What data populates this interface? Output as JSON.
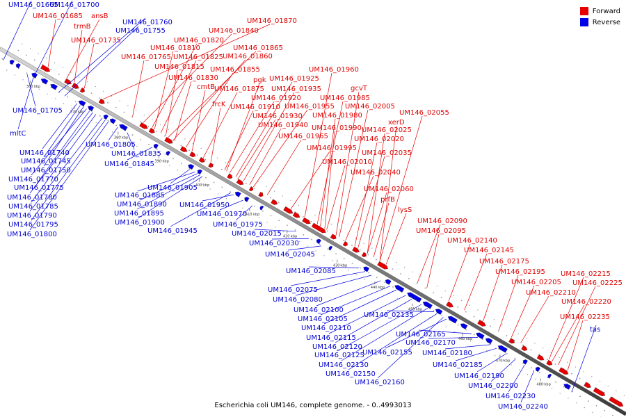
{
  "legend": {
    "forward_label": "Forward",
    "reverse_label": "Reverse",
    "forward_color": "#e60000",
    "reverse_color": "#0000e6"
  },
  "caption": "Escherichia coli UM146, complete genome. - 0..4993013",
  "scale": {
    "unit": "kbp",
    "ticks": [
      "360 kbp",
      "370 kbp",
      "380 kbp",
      "390 kbp",
      "400 kbp",
      "410 kbp",
      "420 kbp",
      "430 kbp",
      "440 kbp",
      "450 kbp",
      "460 kbp",
      "470 kbp",
      "480 kbp"
    ]
  },
  "forward_genes": [
    "UM146_01685",
    "ansB",
    "trmB",
    "UM146_01735",
    "UM146_01870",
    "UM146_01840",
    "UM146_01820",
    "UM146_01865",
    "UM146_01810",
    "UM146_01860",
    "UM146_01765",
    "UM146_01825",
    "UM146_01815",
    "UM146_01855",
    "UM146_01830",
    "cmtB",
    "frcK",
    "UM146_01875",
    "pgk",
    "UM146_01925",
    "UM146_01935",
    "UM146_01920",
    "UM146_01910",
    "UM146_01955",
    "UM146_01930",
    "UM146_01940",
    "UM146_01960",
    "gcvT",
    "UM146_01985",
    "UM146_02005",
    "UM146_01980",
    "UM146_01990",
    "UM146_01965",
    "UM146_01995",
    "UM146_02055",
    "xerD",
    "UM146_02025",
    "UM146_02020",
    "UM146_02035",
    "UM146_02010",
    "UM146_02040",
    "UM146_02060",
    "prfB",
    "lysS",
    "UM146_02090",
    "UM146_02095",
    "UM146_02140",
    "UM146_02145",
    "UM146_02175",
    "UM146_02195",
    "UM146_02205",
    "UM146_02215",
    "UM146_02225",
    "UM146_02210",
    "UM146_02220",
    "UM146_02235"
  ],
  "reverse_genes": [
    "UM146_01665",
    "UM146_01700",
    "UM146_01760",
    "UM146_01755",
    "UM146_01705",
    "mltC",
    "UM146_01740",
    "UM146_01745",
    "UM146_01750",
    "UM146_01770",
    "UM146_01775",
    "UM146_01780",
    "UM146_01785",
    "UM146_01790",
    "UM146_01795",
    "UM146_01800",
    "UM146_01805",
    "UM146_01835",
    "UM146_01845",
    "UM146_01905",
    "UM146_01885",
    "UM146_01890",
    "UM146_01895",
    "UM146_01900",
    "UM146_01945",
    "UM146_01950",
    "UM146_01970",
    "UM146_01975",
    "UM146_02015",
    "UM146_02030",
    "UM146_02045",
    "UM146_02085",
    "UM146_02075",
    "UM146_02080",
    "UM146_02100",
    "UM146_02105",
    "UM146_02110",
    "UM146_02115",
    "UM146_02135",
    "UM146_02120",
    "UM146_02125",
    "UM146_02130",
    "UM146_02155",
    "UM146_02150",
    "UM146_02160",
    "UM146_02165",
    "UM146_02170",
    "UM146_02180",
    "UM146_02185",
    "UM146_02190",
    "UM146_02200",
    "UM146_02230",
    "UM146_02240",
    "tas"
  ]
}
